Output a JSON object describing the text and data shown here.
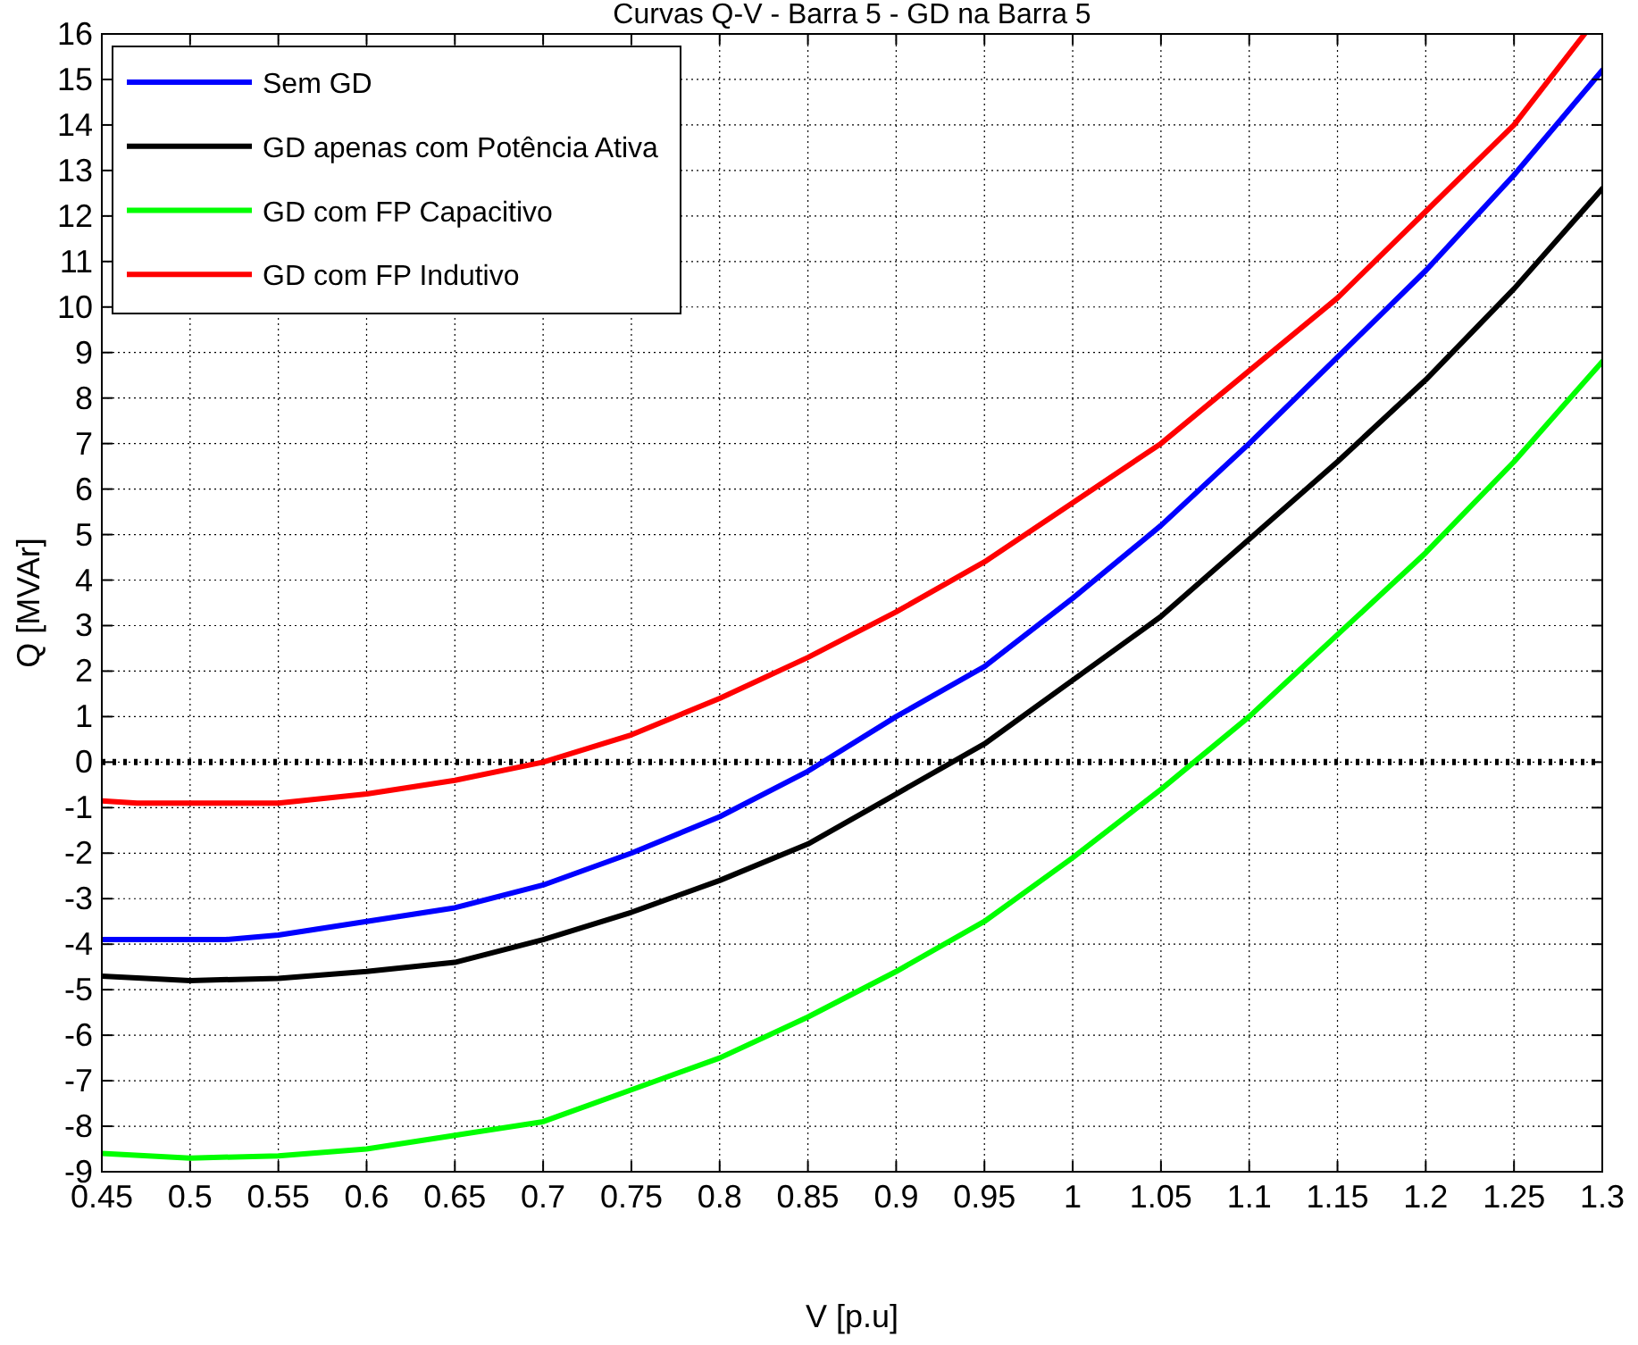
{
  "chart_data": {
    "type": "line",
    "title": "Curvas Q-V - Barra 5 - GD na Barra 5",
    "xlabel": "V [p.u]",
    "ylabel": "Q [MVAr]",
    "xlim": [
      0.45,
      1.3
    ],
    "xticks": [
      0.45,
      0.5,
      0.55,
      0.6,
      0.65,
      0.7,
      0.75,
      0.8,
      0.85,
      0.9,
      0.95,
      1,
      1.05,
      1.1,
      1.15,
      1.2,
      1.25,
      1.3
    ],
    "ylim": [
      -9,
      16
    ],
    "yticks": [
      -9,
      -8,
      -7,
      -6,
      -5,
      -4,
      -3,
      -2,
      -1,
      0,
      1,
      2,
      3,
      4,
      5,
      6,
      7,
      8,
      9,
      10,
      11,
      12,
      13,
      14,
      15,
      16
    ],
    "grid": true,
    "legend": "top left",
    "marker": "none",
    "line_style": "solid",
    "ref_lines": [
      {
        "axis": "y",
        "value": 0,
        "color": "#000000",
        "line_style": "dotted"
      }
    ],
    "series": [
      {
        "name": "Sem GD",
        "color": "#0000ff",
        "x": [
          0.45,
          0.5,
          0.52,
          0.55,
          0.6,
          0.65,
          0.7,
          0.75,
          0.8,
          0.85,
          0.9,
          0.95,
          1,
          1.05,
          1.1,
          1.15,
          1.2,
          1.25,
          1.3
        ],
        "values": [
          -3.9,
          -3.9,
          -3.9,
          -3.8,
          -3.5,
          -3.2,
          -2.7,
          -2,
          -1.2,
          -0.2,
          1,
          2.1,
          3.6,
          5.2,
          7,
          8.9,
          10.8,
          12.9,
          15.2
        ]
      },
      {
        "name": "GD apenas com Potência Ativa",
        "color": "#000000",
        "x": [
          0.45,
          0.5,
          0.55,
          0.6,
          0.65,
          0.7,
          0.75,
          0.8,
          0.85,
          0.9,
          0.95,
          1,
          1.05,
          1.1,
          1.15,
          1.2,
          1.25,
          1.3
        ],
        "values": [
          -4.7,
          -4.8,
          -4.75,
          -4.6,
          -4.4,
          -3.9,
          -3.3,
          -2.6,
          -1.8,
          -0.7,
          0.4,
          1.8,
          3.2,
          4.9,
          6.6,
          8.4,
          10.4,
          12.6
        ]
      },
      {
        "name": "GD com FP Capacitivo",
        "color": "#00ff00",
        "x": [
          0.45,
          0.5,
          0.55,
          0.6,
          0.65,
          0.7,
          0.75,
          0.8,
          0.85,
          0.9,
          0.95,
          1,
          1.05,
          1.1,
          1.15,
          1.2,
          1.25,
          1.3
        ],
        "values": [
          -8.6,
          -8.7,
          -8.65,
          -8.5,
          -8.2,
          -7.9,
          -7.2,
          -6.5,
          -5.6,
          -4.6,
          -3.5,
          -2.1,
          -0.6,
          1,
          2.8,
          4.6,
          6.6,
          8.8
        ]
      },
      {
        "name": "GD com FP Indutivo",
        "color": "#ff0000",
        "x": [
          0.45,
          0.47,
          0.5,
          0.55,
          0.6,
          0.65,
          0.7,
          0.75,
          0.8,
          0.85,
          0.9,
          0.95,
          1,
          1.05,
          1.1,
          1.15,
          1.2,
          1.25,
          1.29
        ],
        "values": [
          -0.85,
          -0.9,
          -0.9,
          -0.9,
          -0.7,
          -0.4,
          0,
          0.6,
          1.4,
          2.3,
          3.3,
          4.4,
          5.7,
          7,
          8.6,
          10.2,
          12.1,
          14,
          16
        ]
      }
    ]
  }
}
